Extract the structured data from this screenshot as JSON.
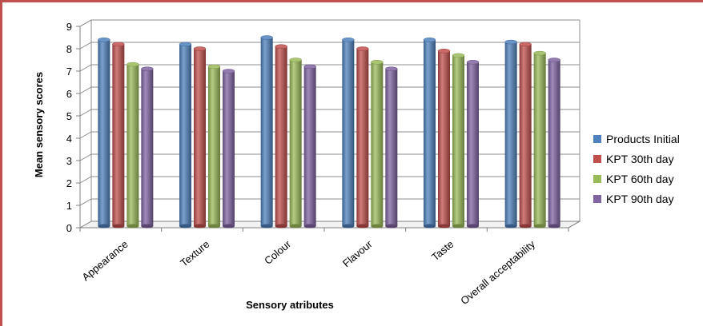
{
  "chart_data": {
    "type": "bar",
    "title": "",
    "xlabel": "Sensory atributes",
    "ylabel": "Mean sensory scores",
    "categories": [
      "Appearance",
      "Texture",
      "Colour",
      "Flavour",
      "Taste",
      "Overall acceptability"
    ],
    "ylim": [
      0,
      9
    ],
    "yticks": [
      "0",
      "1",
      "2",
      "3",
      "4",
      "5",
      "6",
      "7",
      "8",
      "9"
    ],
    "grid": true,
    "legend_position": "right",
    "series": [
      {
        "name": "Products Initial",
        "color": "#4f81bd",
        "values": [
          8.4,
          8.2,
          8.5,
          8.4,
          8.4,
          8.3
        ]
      },
      {
        "name": "KPT 30th day",
        "color": "#c0504d",
        "values": [
          8.2,
          8.0,
          8.1,
          8.0,
          7.9,
          8.2
        ]
      },
      {
        "name": "KPT 60th day",
        "color": "#9bbb59",
        "values": [
          7.3,
          7.2,
          7.5,
          7.4,
          7.7,
          7.8
        ]
      },
      {
        "name": "KPT 90th day",
        "color": "#8064a2",
        "values": [
          7.1,
          7.0,
          7.2,
          7.1,
          7.4,
          7.5
        ]
      }
    ],
    "frame_color": "#c0504d"
  }
}
